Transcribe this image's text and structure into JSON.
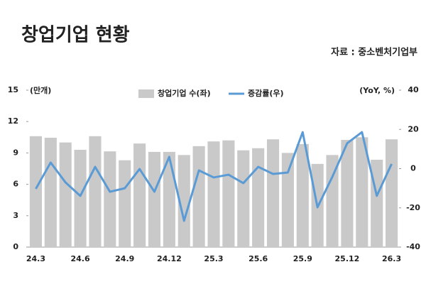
{
  "chart_data": {
    "type": "bar_line",
    "title": "창업기업 현황",
    "source": "자료 : 중소벤처기업부",
    "y_label": "(만개)",
    "y2_label": "(YoY, %)",
    "categories": [
      "24.3",
      null,
      null,
      "24.6",
      null,
      null,
      "24.9",
      null,
      null,
      "24.12",
      null,
      null,
      "25.3",
      null,
      null,
      "25.6",
      null,
      null,
      "25.9",
      null,
      null,
      "25.12",
      null,
      null,
      "26.3"
    ],
    "series": [
      {
        "name": "창업기업 수(좌)",
        "type": "bar",
        "color": "#c9c9c9",
        "values": [
          10.6,
          10.45,
          10.0,
          9.3,
          10.6,
          9.15,
          8.3,
          9.9,
          9.1,
          9.1,
          8.8,
          9.65,
          10.1,
          10.2,
          9.25,
          9.45,
          10.3,
          9.0,
          9.85,
          7.95,
          8.8,
          10.25,
          10.5,
          8.35,
          10.3
        ]
      },
      {
        "name": "증감률(우)",
        "type": "line",
        "axis": "y2",
        "color": "#5b9bd5",
        "values": [
          -10.3,
          3.1,
          -7.0,
          -13.9,
          0.9,
          -11.8,
          -10.0,
          -0.2,
          -11.8,
          6.0,
          -26.6,
          -0.9,
          -4.5,
          -3.1,
          -7.4,
          0.9,
          -2.7,
          -2.0,
          18.6,
          -19.7,
          -4.2,
          12.9,
          18.6,
          -13.9,
          2.4
        ]
      }
    ],
    "ylim": [
      0,
      15
    ],
    "yticks": [
      0,
      3,
      6,
      9,
      12,
      15
    ],
    "y2lim": [
      -40,
      40
    ],
    "y2ticks": [
      -40,
      -20,
      0,
      20,
      40
    ],
    "grid": false,
    "legend": "top"
  }
}
